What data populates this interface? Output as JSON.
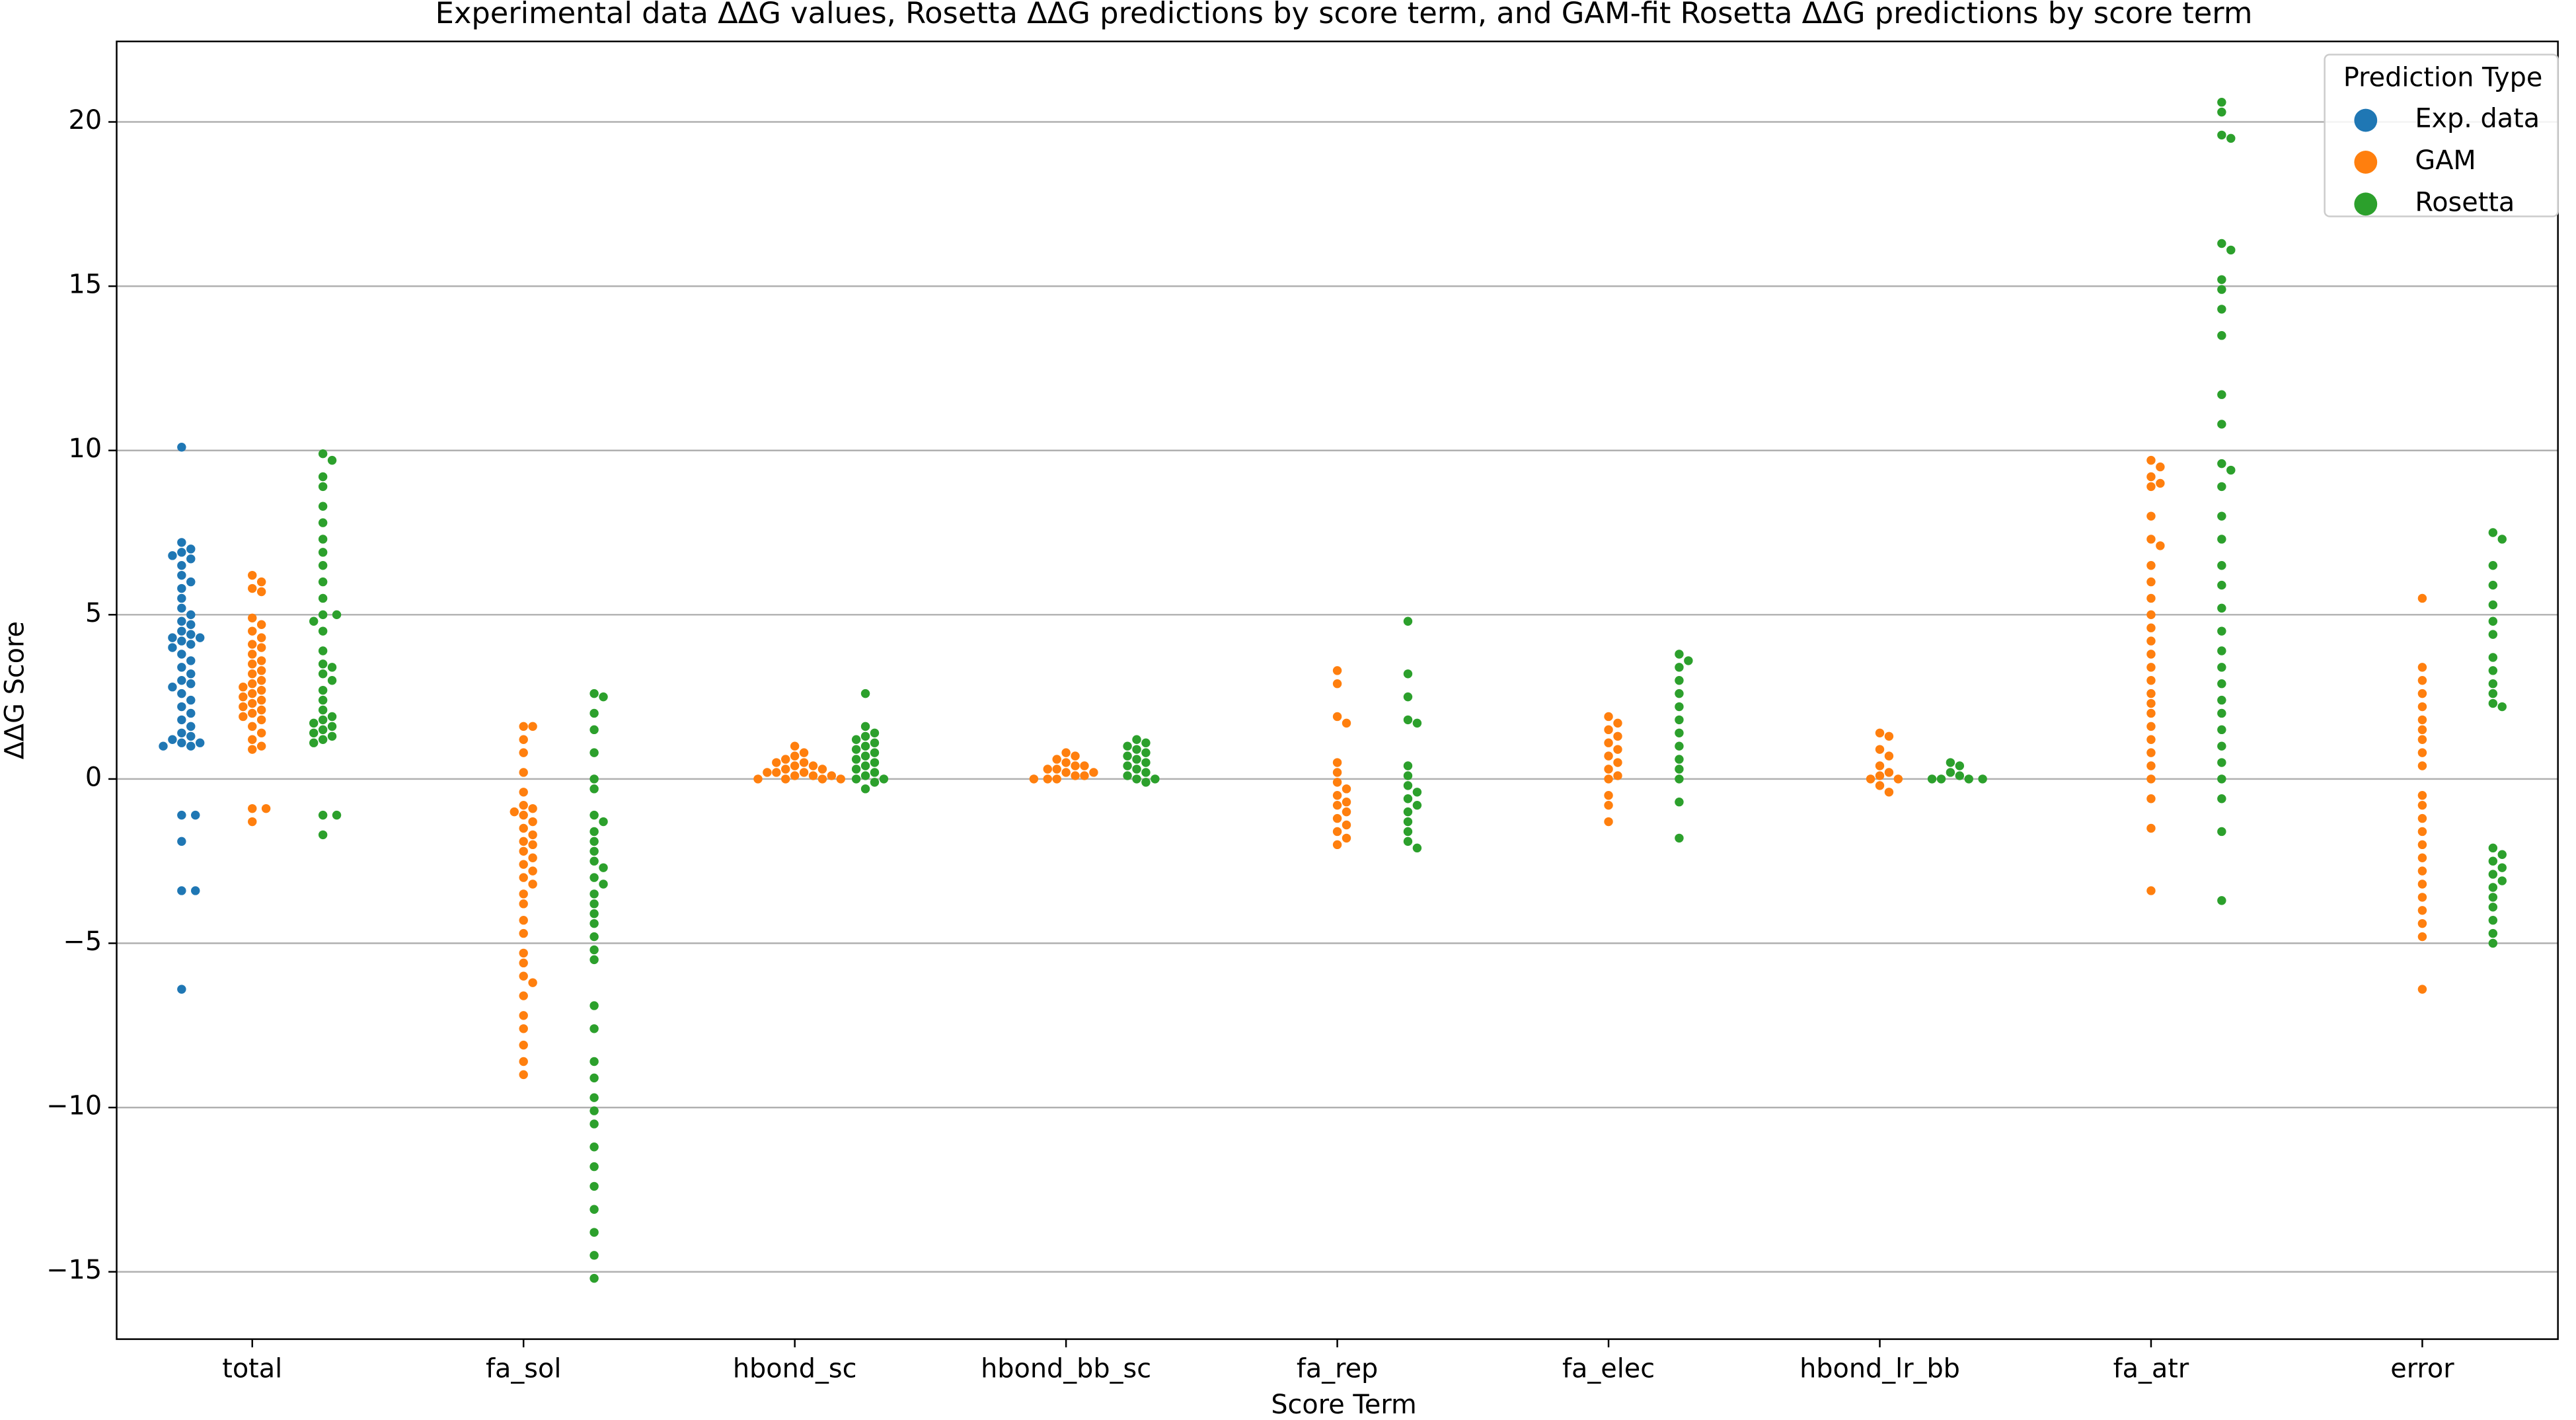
{
  "chart_data": {
    "type": "swarm",
    "title": "Experimental data ΔΔG values, Rosetta ΔΔG predictions by score term, and GAM-fit Rosetta ΔΔG predictions by score term",
    "x_label": "Score Term",
    "y_label": "ΔΔG Score",
    "categories": [
      "total",
      "fa_sol",
      "hbond_sc",
      "hbond_bb_sc",
      "fa_rep",
      "fa_elec",
      "hbond_lr_bb",
      "fa_atr",
      "error"
    ],
    "ylim": [
      -17.05,
      22.45
    ],
    "yticks": [
      {
        "value": -15,
        "label": "−15"
      },
      {
        "value": -10,
        "label": "−10"
      },
      {
        "value": -5,
        "label": "−5"
      },
      0,
      5,
      10,
      15,
      20
    ],
    "grid": true,
    "legend_title": "Prediction Type",
    "legend_position": "upper right",
    "series": [
      {
        "name": "Exp. data",
        "color": "#1f77b4",
        "values": [
          [
            10.1,
            7.2,
            7.0,
            6.9,
            6.8,
            6.7,
            6.5,
            6.2,
            6.0,
            5.8,
            5.5,
            5.2,
            5.0,
            4.8,
            4.7,
            4.5,
            4.4,
            4.3,
            4.3,
            4.2,
            4.1,
            4.0,
            3.8,
            3.6,
            3.4,
            3.2,
            3.0,
            2.9,
            2.8,
            2.6,
            2.4,
            2.2,
            2.0,
            1.8,
            1.6,
            1.4,
            1.3,
            1.2,
            1.1,
            1.1,
            1.0,
            1.0,
            -1.1,
            -1.1,
            -1.9,
            -3.4,
            -3.4,
            -6.4
          ],
          [],
          [],
          [],
          [],
          [],
          [],
          [],
          []
        ]
      },
      {
        "name": "GAM",
        "color": "#ff7f0e",
        "values": [
          [
            6.2,
            6.0,
            5.8,
            5.7,
            4.9,
            4.7,
            4.5,
            4.3,
            4.1,
            4.0,
            3.8,
            3.6,
            3.5,
            3.3,
            3.2,
            3.0,
            2.9,
            2.8,
            2.7,
            2.6,
            2.5,
            2.4,
            2.3,
            2.2,
            2.1,
            2.0,
            1.9,
            1.8,
            1.6,
            1.4,
            1.2,
            1.0,
            0.9,
            -0.9,
            -0.9,
            -1.3
          ],
          [
            1.6,
            1.6,
            1.2,
            0.8,
            0.2,
            -0.4,
            -0.8,
            -0.9,
            -1.0,
            -1.1,
            -1.3,
            -1.5,
            -1.7,
            -1.9,
            -2.0,
            -2.2,
            -2.4,
            -2.6,
            -2.8,
            -3.0,
            -3.2,
            -3.5,
            -3.8,
            -4.3,
            -4.7,
            -5.3,
            -5.6,
            -6.0,
            -6.2,
            -6.6,
            -7.2,
            -7.6,
            -8.1,
            -8.6,
            -9.0
          ],
          [
            1.0,
            0.8,
            0.7,
            0.6,
            0.5,
            0.5,
            0.4,
            0.4,
            0.3,
            0.3,
            0.2,
            0.2,
            0.2,
            0.1,
            0.1,
            0.1,
            0.0,
            0.0,
            0.0,
            0.0
          ],
          [
            0.8,
            0.7,
            0.6,
            0.5,
            0.4,
            0.4,
            0.3,
            0.3,
            0.2,
            0.2,
            0.1,
            0.1,
            0.0,
            0.0,
            0.0
          ],
          [
            3.3,
            2.9,
            1.9,
            1.7,
            0.5,
            0.2,
            -0.1,
            -0.3,
            -0.5,
            -0.7,
            -0.8,
            -1.0,
            -1.2,
            -1.4,
            -1.6,
            -1.8,
            -2.0
          ],
          [
            1.9,
            1.7,
            1.5,
            1.3,
            1.1,
            0.9,
            0.7,
            0.5,
            0.3,
            0.1,
            0.0,
            -0.5,
            -0.8,
            -1.3
          ],
          [
            1.4,
            1.3,
            0.9,
            0.7,
            0.4,
            0.2,
            0.1,
            0.0,
            0.0,
            -0.2,
            -0.4
          ],
          [
            9.7,
            9.5,
            9.2,
            9.0,
            8.9,
            8.0,
            7.3,
            7.1,
            6.5,
            6.0,
            5.5,
            5.0,
            4.6,
            4.2,
            3.8,
            3.4,
            3.0,
            2.6,
            2.3,
            2.0,
            1.6,
            1.2,
            0.8,
            0.4,
            0.0,
            -0.6,
            -1.5,
            -3.4
          ],
          [
            5.5,
            3.4,
            3.0,
            2.6,
            2.2,
            1.8,
            1.5,
            1.2,
            0.8,
            0.4,
            -0.5,
            -0.8,
            -1.2,
            -1.6,
            -2.0,
            -2.4,
            -2.8,
            -3.2,
            -3.6,
            -4.0,
            -4.4,
            -4.8,
            -6.4
          ]
        ]
      },
      {
        "name": "Rosetta",
        "color": "#2ca02c",
        "values": [
          [
            9.9,
            9.7,
            9.2,
            8.9,
            8.3,
            7.8,
            7.3,
            6.9,
            6.5,
            6.0,
            5.5,
            5.0,
            5.0,
            4.8,
            4.5,
            3.9,
            3.5,
            3.4,
            3.2,
            3.0,
            2.7,
            2.4,
            2.1,
            1.9,
            1.8,
            1.7,
            1.6,
            1.5,
            1.4,
            1.3,
            1.2,
            1.1,
            -1.1,
            -1.1,
            -1.7
          ],
          [
            2.6,
            2.5,
            2.0,
            1.5,
            0.8,
            0.0,
            -0.3,
            -1.1,
            -1.3,
            -1.6,
            -1.9,
            -2.2,
            -2.5,
            -2.7,
            -3.0,
            -3.2,
            -3.5,
            -3.8,
            -4.1,
            -4.4,
            -4.8,
            -5.2,
            -5.5,
            -6.9,
            -7.6,
            -8.6,
            -9.1,
            -9.7,
            -10.1,
            -10.5,
            -11.2,
            -11.8,
            -12.4,
            -13.1,
            -13.8,
            -14.5,
            -15.2
          ],
          [
            2.6,
            1.6,
            1.4,
            1.3,
            1.2,
            1.1,
            1.0,
            0.9,
            0.8,
            0.7,
            0.6,
            0.5,
            0.4,
            0.3,
            0.2,
            0.1,
            0.0,
            0.0,
            -0.1,
            -0.3
          ],
          [
            1.2,
            1.1,
            1.0,
            0.9,
            0.8,
            0.7,
            0.6,
            0.5,
            0.4,
            0.3,
            0.2,
            0.1,
            0.0,
            0.0,
            -0.1
          ],
          [
            4.8,
            3.2,
            2.5,
            1.8,
            1.7,
            0.4,
            0.1,
            -0.2,
            -0.4,
            -0.6,
            -0.8,
            -1.0,
            -1.3,
            -1.6,
            -1.9,
            -2.1
          ],
          [
            3.8,
            3.6,
            3.4,
            3.0,
            2.6,
            2.2,
            1.8,
            1.4,
            1.0,
            0.6,
            0.3,
            0.0,
            -0.7,
            -1.8
          ],
          [
            0.5,
            0.4,
            0.2,
            0.1,
            0.0,
            0.0,
            0.0,
            0.0
          ],
          [
            20.6,
            20.3,
            19.6,
            19.5,
            16.3,
            16.1,
            15.2,
            14.9,
            14.3,
            13.5,
            11.7,
            10.8,
            9.6,
            9.4,
            8.9,
            8.0,
            7.3,
            6.5,
            5.9,
            5.2,
            4.5,
            3.9,
            3.4,
            2.9,
            2.4,
            2.0,
            1.5,
            1.0,
            0.5,
            0.0,
            -0.6,
            -1.6,
            -3.7
          ],
          [
            7.5,
            7.3,
            6.5,
            5.9,
            5.3,
            4.8,
            4.4,
            3.7,
            3.3,
            2.9,
            2.6,
            2.3,
            2.2,
            -2.1,
            -2.3,
            -2.5,
            -2.7,
            -2.9,
            -3.1,
            -3.3,
            -3.6,
            -3.9,
            -4.3,
            -4.7,
            -5.0
          ]
        ]
      }
    ]
  }
}
